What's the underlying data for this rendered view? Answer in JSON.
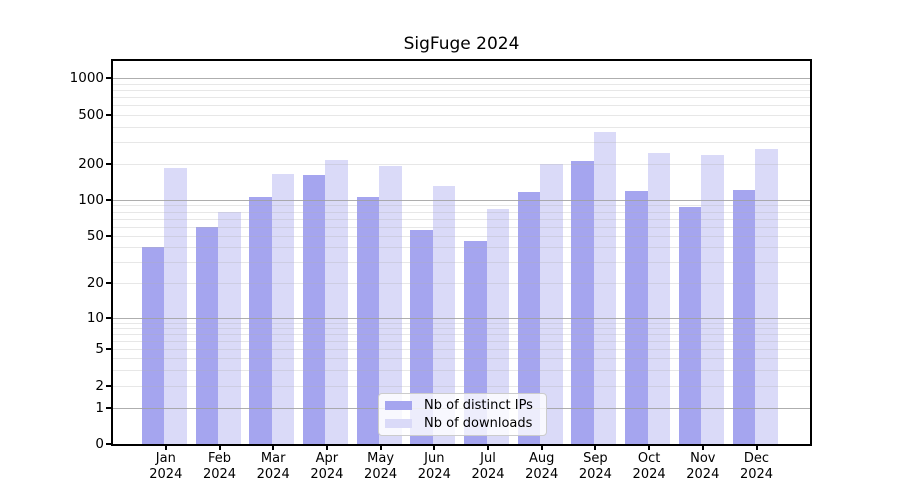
{
  "chart_data": {
    "type": "bar",
    "title": "SigFuge 2024",
    "categories": [
      "Jan 2024",
      "Feb 2024",
      "Mar 2024",
      "Apr 2024",
      "May 2024",
      "Jun 2024",
      "Jul 2024",
      "Aug 2024",
      "Sep 2024",
      "Oct 2024",
      "Nov 2024",
      "Dec 2024"
    ],
    "x_ticks": [
      {
        "label": "Jan",
        "sub": "2024"
      },
      {
        "label": "Feb",
        "sub": "2024"
      },
      {
        "label": "Mar",
        "sub": "2024"
      },
      {
        "label": "Apr",
        "sub": "2024"
      },
      {
        "label": "May",
        "sub": "2024"
      },
      {
        "label": "Jun",
        "sub": "2024"
      },
      {
        "label": "Jul",
        "sub": "2024"
      },
      {
        "label": "Aug",
        "sub": "2024"
      },
      {
        "label": "Sep",
        "sub": "2024"
      },
      {
        "label": "Oct",
        "sub": "2024"
      },
      {
        "label": "Nov",
        "sub": "2024"
      },
      {
        "label": "Dec",
        "sub": "2024"
      }
    ],
    "series": [
      {
        "name": "Nb of distinct IPs",
        "color": "#a5a5ef",
        "values": [
          40,
          60,
          105,
          160,
          106,
          56,
          45,
          117,
          210,
          118,
          87,
          120
        ]
      },
      {
        "name": "Nb of downloads",
        "color": "#dadaf8",
        "values": [
          185,
          80,
          165,
          215,
          190,
          130,
          84,
          198,
          360,
          245,
          235,
          265
        ]
      }
    ],
    "yscale": "symlog",
    "y_ticks": [
      0,
      1,
      2,
      5,
      10,
      20,
      50,
      100,
      200,
      500,
      1000
    ],
    "ylim": [
      0,
      1400
    ],
    "grid": "both",
    "legend_position": "inside-bottom-center",
    "xlabel": "",
    "ylabel": ""
  },
  "colors": {
    "bar_distinct_ips": "#a5a5ef",
    "bar_downloads": "#dadaf8",
    "grid_major": "#a0a0a0",
    "grid_minor": "#d9d9d9",
    "axis": "#000000",
    "legend_border": "#cccccc",
    "background": "#ffffff"
  }
}
